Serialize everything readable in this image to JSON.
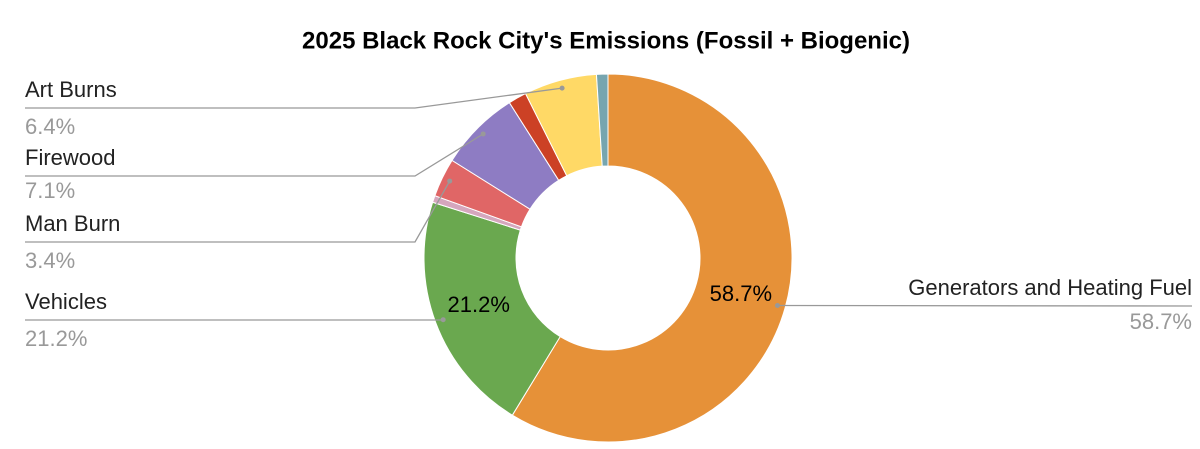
{
  "chart_data": {
    "type": "donut",
    "title": "2025 Black Rock City's Emissions (Fossil + Biogenic)",
    "categories": [
      "Generators and Heating Fuel",
      "Vehicles",
      null,
      "Man Burn",
      "Firewood",
      null,
      "Art Burns",
      null
    ],
    "values": [
      58.7,
      21.2,
      0.6,
      3.4,
      7.1,
      1.6,
      6.4,
      1.0
    ],
    "value_labels": [
      "58.7%",
      "21.2%",
      null,
      "3.4%",
      "7.1%",
      null,
      "6.4%",
      null
    ],
    "colors": [
      "#e69138",
      "#6aa84f",
      "#d5a6bd",
      "#e06666",
      "#8e7cc3",
      "#cc4125",
      "#ffd966",
      "#76a5af"
    ]
  }
}
